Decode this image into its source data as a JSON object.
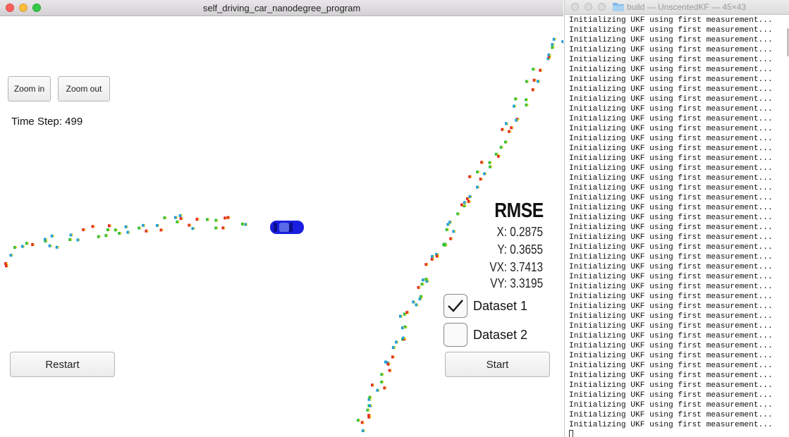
{
  "simulator": {
    "title": "self_driving_car_nanodegree_program",
    "zoom_in_label": "Zoom in",
    "zoom_out_label": "Zoom out",
    "time_step": "Time Step: 499",
    "rmse": {
      "title": "RMSE",
      "x": "X: 0.2875",
      "y": "Y: 0.3655",
      "vx": "VX: 3.7413",
      "vy": "VY: 3.3195"
    },
    "datasets": [
      {
        "label": "Dataset 1",
        "checked": true
      },
      {
        "label": "Dataset 2",
        "checked": false
      }
    ],
    "restart_label": "Restart",
    "start_label": "Start",
    "colors": {
      "car": "#1a1ee0",
      "lidar": "#e0281e",
      "radar": "#1a9bd9",
      "estimate": "#2fbf3a",
      "marker": "#f2d60c"
    }
  },
  "terminal": {
    "title": "build — UnscentedKF — 45×43",
    "line_text": "Initializing UKF using first measurement...",
    "line_count": 42
  }
}
